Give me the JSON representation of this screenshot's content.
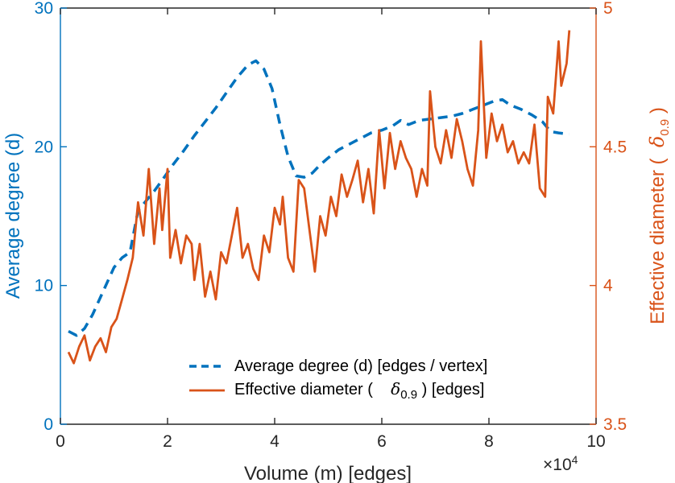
{
  "figure": {
    "background": "#FFFFFF"
  },
  "chart_data": {
    "type": "line",
    "title": "",
    "xlabel": "Volume (m) [edges]",
    "x_multiplier_base": "×10",
    "x_multiplier_exp": "4",
    "xlim": [
      0,
      10
    ],
    "xticks": [
      "0",
      "2",
      "4",
      "6",
      "8",
      "10"
    ],
    "axis_color": "#262626",
    "grid": false,
    "legend_position": "south-inside",
    "left_axis": {
      "label": "Average degree (d)",
      "color": "#0072BD",
      "lim": [
        0,
        30
      ],
      "ticks": [
        "0",
        "10",
        "20",
        "30"
      ]
    },
    "right_axis": {
      "label": "Effective diameter ( δ0.9 )",
      "label_parts": {
        "pre": "Effective diameter (  ",
        "symbol": "δ",
        "sub": "0.9",
        "post": " )"
      },
      "color": "#D95319",
      "lim": [
        3.5,
        5
      ],
      "ticks": [
        "3.5",
        "4",
        "4.5",
        "5"
      ]
    },
    "series": [
      {
        "name": "Average degree (d) [edges / vertex]",
        "axis": "left",
        "style": "dashed",
        "color": "#0072BD",
        "width": 3.5,
        "x": [
          0.15,
          0.3,
          0.45,
          0.6,
          0.8,
          1.0,
          1.15,
          1.3,
          1.45,
          1.6,
          1.75,
          1.9,
          2.1,
          2.3,
          2.5,
          2.7,
          2.9,
          3.1,
          3.3,
          3.5,
          3.65,
          3.8,
          3.95,
          4.1,
          4.25,
          4.4,
          4.55,
          4.7,
          4.85,
          5.0,
          5.2,
          5.4,
          5.6,
          5.8,
          6.0,
          6.2,
          6.35,
          6.5,
          6.7,
          6.9,
          7.1,
          7.3,
          7.5,
          7.7,
          7.9,
          8.1,
          8.25,
          8.4,
          8.6,
          8.8,
          9.0,
          9.15,
          9.3,
          9.5
        ],
        "y": [
          6.7,
          6.4,
          6.9,
          7.9,
          9.6,
          11.3,
          12.0,
          12.4,
          15.4,
          16.1,
          16.8,
          17.6,
          18.7,
          19.7,
          20.8,
          21.8,
          22.8,
          23.9,
          25.0,
          25.9,
          26.2,
          25.6,
          24.2,
          21.6,
          19.3,
          17.9,
          17.8,
          18.1,
          18.7,
          19.2,
          19.8,
          20.2,
          20.6,
          21.0,
          21.2,
          21.5,
          21.9,
          21.6,
          21.9,
          22.0,
          22.1,
          22.2,
          22.4,
          22.7,
          23.0,
          23.3,
          23.4,
          23.0,
          22.7,
          22.3,
          21.8,
          21.1,
          21.0,
          20.9
        ]
      },
      {
        "name": "Effective diameter ( δ0.9 ) [edges]",
        "label_parts": {
          "pre": "Effective diameter (    ",
          "symbol": "δ",
          "sub": "0.9",
          "post": " ) [edges]"
        },
        "axis": "right",
        "style": "solid",
        "color": "#D95319",
        "width": 2.8,
        "x": [
          0.15,
          0.25,
          0.35,
          0.45,
          0.55,
          0.65,
          0.75,
          0.85,
          0.95,
          1.05,
          1.15,
          1.25,
          1.35,
          1.45,
          1.55,
          1.65,
          1.75,
          1.85,
          1.9,
          2.0,
          2.05,
          2.15,
          2.25,
          2.35,
          2.45,
          2.5,
          2.6,
          2.7,
          2.8,
          2.9,
          3.0,
          3.1,
          3.2,
          3.3,
          3.4,
          3.5,
          3.6,
          3.7,
          3.8,
          3.9,
          4.0,
          4.1,
          4.15,
          4.25,
          4.35,
          4.45,
          4.55,
          4.65,
          4.75,
          4.85,
          4.95,
          5.05,
          5.15,
          5.25,
          5.35,
          5.45,
          5.55,
          5.65,
          5.75,
          5.85,
          5.95,
          6.05,
          6.15,
          6.25,
          6.35,
          6.45,
          6.55,
          6.65,
          6.75,
          6.85,
          6.9,
          7.0,
          7.1,
          7.2,
          7.3,
          7.4,
          7.5,
          7.6,
          7.7,
          7.8,
          7.85,
          7.95,
          8.05,
          8.15,
          8.25,
          8.35,
          8.45,
          8.55,
          8.65,
          8.75,
          8.85,
          8.95,
          9.05,
          9.1,
          9.2,
          9.3,
          9.35,
          9.45,
          9.5
        ],
        "y": [
          3.76,
          3.72,
          3.78,
          3.82,
          3.73,
          3.78,
          3.81,
          3.76,
          3.85,
          3.88,
          3.95,
          4.02,
          4.1,
          4.3,
          4.18,
          4.42,
          4.15,
          4.35,
          4.2,
          4.42,
          4.1,
          4.2,
          4.08,
          4.18,
          4.15,
          4.02,
          4.15,
          3.96,
          4.05,
          3.95,
          4.12,
          4.08,
          4.18,
          4.28,
          4.1,
          4.15,
          4.06,
          4.02,
          4.18,
          4.12,
          4.28,
          4.22,
          4.32,
          4.1,
          4.05,
          4.38,
          4.35,
          4.2,
          4.05,
          4.25,
          4.18,
          4.32,
          4.25,
          4.4,
          4.32,
          4.38,
          4.45,
          4.3,
          4.42,
          4.26,
          4.56,
          4.35,
          4.55,
          4.42,
          4.52,
          4.46,
          4.42,
          4.32,
          4.42,
          4.36,
          4.7,
          4.5,
          4.44,
          4.56,
          4.46,
          4.6,
          4.52,
          4.42,
          4.36,
          4.56,
          4.88,
          4.46,
          4.62,
          4.52,
          4.58,
          4.48,
          4.52,
          4.44,
          4.48,
          4.44,
          4.58,
          4.35,
          4.32,
          4.68,
          4.62,
          4.88,
          4.72,
          4.8,
          4.92
        ]
      }
    ]
  }
}
